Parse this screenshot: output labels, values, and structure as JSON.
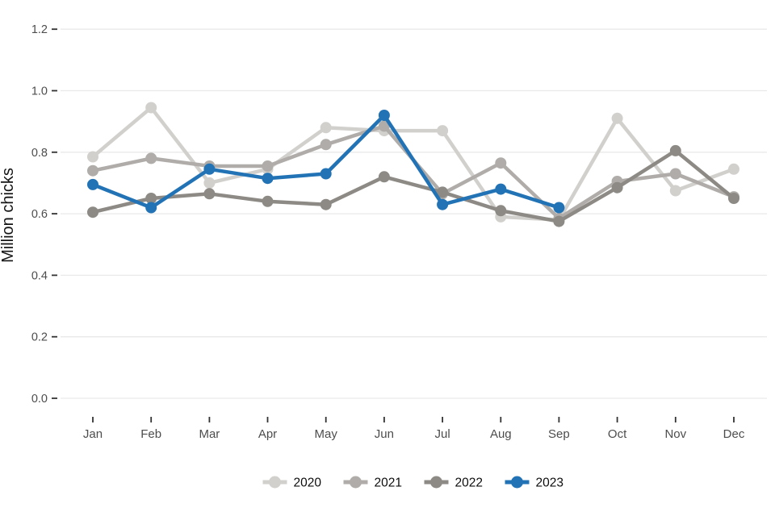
{
  "chart_data": {
    "type": "line",
    "title": "",
    "xlabel": "",
    "ylabel": "Million chicks",
    "categories": [
      "Jan",
      "Feb",
      "Mar",
      "Apr",
      "May",
      "Jun",
      "Jul",
      "Aug",
      "Sep",
      "Oct",
      "Nov",
      "Dec"
    ],
    "ylim": [
      0,
      1.25
    ],
    "yticks": [
      0,
      0.2,
      0.4,
      0.6,
      0.8,
      1.0,
      1.2
    ],
    "ytick_labels": [
      "0.0",
      "0.2",
      "0.4",
      "0.6",
      "0.8",
      "1.0",
      "1.2"
    ],
    "grid": true,
    "legend_position": "bottom",
    "series": [
      {
        "name": "2020",
        "color": "#d2d0cd",
        "values": [
          0.785,
          0.945,
          0.7,
          0.745,
          0.88,
          0.87,
          0.87,
          0.59,
          0.58,
          0.91,
          0.675,
          0.745
        ]
      },
      {
        "name": "2021",
        "color": "#afaca9",
        "values": [
          0.74,
          0.78,
          0.755,
          0.755,
          0.825,
          0.885,
          0.665,
          0.765,
          0.585,
          0.705,
          0.73,
          0.655
        ]
      },
      {
        "name": "2022",
        "color": "#8d8a85",
        "values": [
          0.605,
          0.65,
          0.665,
          0.64,
          0.63,
          0.72,
          0.67,
          0.61,
          0.575,
          0.685,
          0.805,
          0.65
        ]
      },
      {
        "name": "2023",
        "color": "#2273b5",
        "values": [
          0.695,
          0.62,
          0.745,
          0.715,
          0.73,
          0.92,
          0.63,
          0.68,
          0.62,
          null,
          null,
          null
        ]
      }
    ]
  },
  "colors": {
    "background": "#ffffff",
    "grid": "#e9e9e9",
    "tick": "#333333",
    "axis_text": "#4d4d4d",
    "axis_title_text": "#141414",
    "legend_text": "#0d0d0d"
  }
}
